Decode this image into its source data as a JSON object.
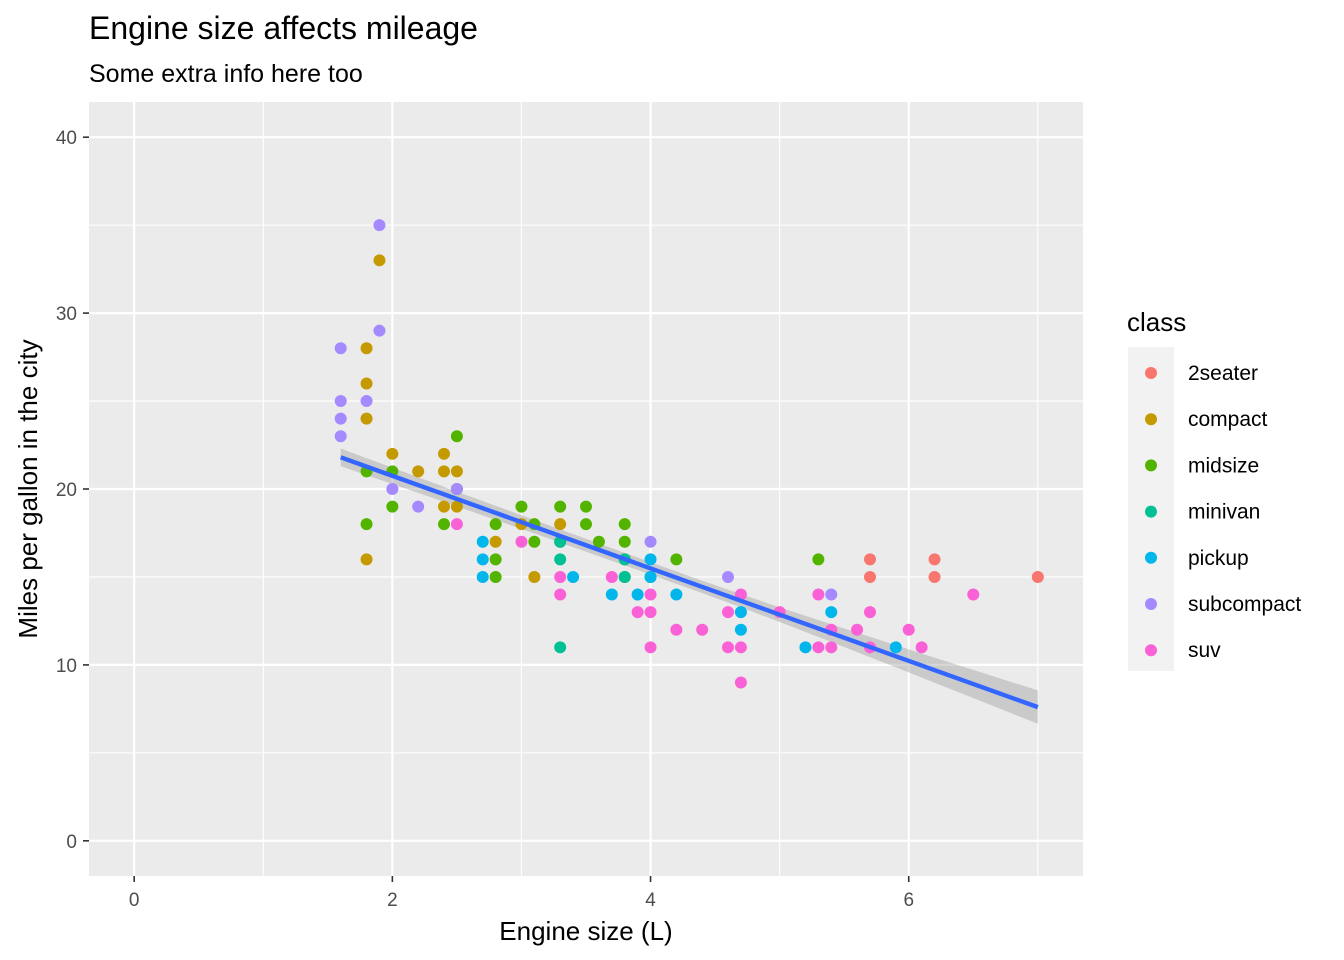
{
  "chart_data": {
    "type": "scatter",
    "title": "Engine size affects mileage",
    "subtitle": "Some extra info here too",
    "xlabel": "Engine size (L)",
    "ylabel": "Miles per gallon in the city",
    "xlim": [
      -0.35,
      7.35
    ],
    "ylim": [
      -2,
      42
    ],
    "x_ticks": [
      0,
      2,
      4,
      6
    ],
    "x_minor": [
      1,
      3,
      5,
      7
    ],
    "y_ticks": [
      0,
      10,
      20,
      30,
      40
    ],
    "y_minor": [
      5,
      15,
      25,
      35
    ],
    "grid": true,
    "legend": {
      "title": "class",
      "position": "right"
    },
    "series": [
      {
        "name": "2seater",
        "color": "#F8766D",
        "points": [
          [
            5.7,
            16
          ],
          [
            5.7,
            15
          ],
          [
            6.2,
            16
          ],
          [
            6.2,
            15
          ],
          [
            7.0,
            15
          ]
        ]
      },
      {
        "name": "compact",
        "color": "#C49A00",
        "points": [
          [
            1.8,
            28
          ],
          [
            1.8,
            26
          ],
          [
            1.8,
            24
          ],
          [
            1.8,
            16
          ],
          [
            1.9,
            33
          ],
          [
            2.0,
            22
          ],
          [
            2.2,
            21
          ],
          [
            2.4,
            22
          ],
          [
            2.4,
            21
          ],
          [
            2.4,
            19
          ],
          [
            2.5,
            21
          ],
          [
            2.5,
            19
          ],
          [
            2.8,
            17
          ],
          [
            3.0,
            18
          ],
          [
            3.1,
            15
          ],
          [
            3.3,
            18
          ]
        ]
      },
      {
        "name": "midsize",
        "color": "#53B400",
        "points": [
          [
            1.8,
            21
          ],
          [
            1.8,
            18
          ],
          [
            2.0,
            21
          ],
          [
            2.0,
            19
          ],
          [
            2.4,
            18
          ],
          [
            2.5,
            23
          ],
          [
            2.5,
            20
          ],
          [
            2.8,
            18
          ],
          [
            2.8,
            16
          ],
          [
            2.8,
            15
          ],
          [
            3.0,
            19
          ],
          [
            3.1,
            18
          ],
          [
            3.1,
            17
          ],
          [
            3.3,
            19
          ],
          [
            3.3,
            17
          ],
          [
            3.5,
            19
          ],
          [
            3.5,
            18
          ],
          [
            3.6,
            17
          ],
          [
            3.8,
            18
          ],
          [
            3.8,
            17
          ],
          [
            3.8,
            16
          ],
          [
            3.8,
            15
          ],
          [
            4.2,
            16
          ],
          [
            5.3,
            16
          ]
        ]
      },
      {
        "name": "minivan",
        "color": "#00C094",
        "points": [
          [
            3.3,
            17
          ],
          [
            3.3,
            16
          ],
          [
            3.3,
            11
          ],
          [
            3.8,
            16
          ],
          [
            3.8,
            15
          ],
          [
            4.0,
            15
          ]
        ]
      },
      {
        "name": "pickup",
        "color": "#00B6EB",
        "points": [
          [
            2.7,
            17
          ],
          [
            2.7,
            16
          ],
          [
            2.7,
            15
          ],
          [
            3.4,
            15
          ],
          [
            3.7,
            14
          ],
          [
            3.9,
            14
          ],
          [
            4.0,
            16
          ],
          [
            4.0,
            15
          ],
          [
            4.2,
            14
          ],
          [
            4.7,
            13
          ],
          [
            4.7,
            12
          ],
          [
            5.2,
            11
          ],
          [
            5.4,
            13
          ],
          [
            5.9,
            11
          ]
        ]
      },
      {
        "name": "subcompact",
        "color": "#A58AFF",
        "points": [
          [
            1.6,
            28
          ],
          [
            1.6,
            25
          ],
          [
            1.6,
            24
          ],
          [
            1.6,
            23
          ],
          [
            1.8,
            25
          ],
          [
            1.9,
            35
          ],
          [
            1.9,
            29
          ],
          [
            2.0,
            20
          ],
          [
            2.2,
            19
          ],
          [
            2.5,
            20
          ],
          [
            4.0,
            17
          ],
          [
            4.6,
            15
          ],
          [
            5.4,
            14
          ]
        ]
      },
      {
        "name": "suv",
        "color": "#FB61D7",
        "points": [
          [
            2.5,
            18
          ],
          [
            3.0,
            17
          ],
          [
            3.3,
            15
          ],
          [
            3.3,
            14
          ],
          [
            3.7,
            15
          ],
          [
            3.9,
            13
          ],
          [
            4.0,
            14
          ],
          [
            4.0,
            13
          ],
          [
            4.0,
            11
          ],
          [
            4.2,
            12
          ],
          [
            4.4,
            12
          ],
          [
            4.6,
            13
          ],
          [
            4.6,
            11
          ],
          [
            4.7,
            14
          ],
          [
            4.7,
            11
          ],
          [
            4.7,
            9
          ],
          [
            5.0,
            13
          ],
          [
            5.3,
            14
          ],
          [
            5.3,
            11
          ],
          [
            5.4,
            12
          ],
          [
            5.4,
            11
          ],
          [
            5.6,
            12
          ],
          [
            5.7,
            13
          ],
          [
            5.7,
            11
          ],
          [
            6.0,
            12
          ],
          [
            6.1,
            11
          ],
          [
            6.5,
            14
          ]
        ]
      }
    ],
    "trend_line": {
      "method": "linear",
      "color": "#3366FF",
      "band_color": "#999999",
      "x": [
        1.6,
        7.0
      ],
      "y": [
        21.8,
        7.6
      ],
      "ci_half_width_at_ends": [
        0.5,
        0.95
      ],
      "ci_half_width_at_center": 0.35
    }
  }
}
